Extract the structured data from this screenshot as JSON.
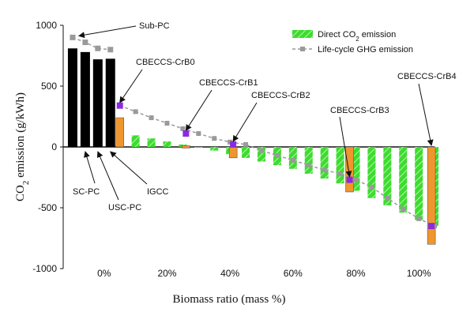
{
  "chart_data": {
    "type": "bar",
    "ylabel": "CO2 emission (g/kWh)",
    "xlabel": "Biomass ratio (mass %)",
    "ylim": [
      -1000,
      1000
    ],
    "y_ticks": [
      1000,
      500,
      0,
      -500,
      -1000
    ],
    "xlim": [
      -13,
      110
    ],
    "x_ticks": [
      0,
      20,
      40,
      60,
      80,
      100
    ],
    "x_tick_labels": [
      "0%",
      "20%",
      "40%",
      "60%",
      "80%",
      "100%"
    ],
    "colors": {
      "fossil": "#000000",
      "biomass": "#3ddc2e",
      "cbeccs": "#f0962e",
      "ghg_line": "#9a9a9a",
      "ghg_marker": "#9a9a9a",
      "ghg_highlight": "#8a2be2"
    },
    "legend": {
      "position": "top-right",
      "entries": [
        {
          "label": "Direct CO",
          "sub": "2",
          "label_after": " emission",
          "kind": "bar"
        },
        {
          "label": "Life-cycle GHG emission",
          "kind": "line"
        }
      ]
    },
    "fossil_plants": [
      {
        "name": "Sub-PC",
        "x": -10,
        "direct": 810,
        "ghg": 900
      },
      {
        "name": "SC-PC",
        "x": -6,
        "direct": 780,
        "ghg": 860
      },
      {
        "name": "USC-PC",
        "x": -2,
        "direct": 720,
        "ghg": 810
      },
      {
        "name": "IGCC",
        "x": 2,
        "direct": 725,
        "ghg": 800
      }
    ],
    "biomass_series": {
      "name": "Direct CO2 emission",
      "x": [
        5,
        10,
        15,
        20,
        25,
        30,
        35,
        40,
        45,
        50,
        55,
        60,
        65,
        70,
        75,
        80,
        85,
        90,
        95,
        100,
        105
      ],
      "direct": [
        240,
        95,
        70,
        45,
        20,
        -5,
        -30,
        -60,
        -90,
        -120,
        -150,
        -180,
        -220,
        -260,
        -300,
        -360,
        -420,
        -480,
        -540,
        -600,
        -650
      ],
      "ghg": [
        340,
        290,
        240,
        195,
        150,
        110,
        70,
        40,
        20,
        -30,
        -70,
        -110,
        -150,
        -190,
        -220,
        -270,
        -330,
        -420,
        -510,
        -590,
        -650
      ]
    },
    "cbeccs": [
      {
        "name": "CBECCS-CrB0",
        "x": 5,
        "direct": 240,
        "ghg": 340
      },
      {
        "name": "CBECCS-CrB1",
        "x": 26,
        "direct": 10,
        "ghg": 110
      },
      {
        "name": "CBECCS-CrB2",
        "x": 41,
        "direct": -90,
        "ghg": 20
      },
      {
        "name": "CBECCS-CrB3",
        "x": 78,
        "direct": -370,
        "ghg": -270
      },
      {
        "name": "CBECCS-CrB4",
        "x": 104,
        "direct": -800,
        "ghg": -650
      }
    ]
  }
}
